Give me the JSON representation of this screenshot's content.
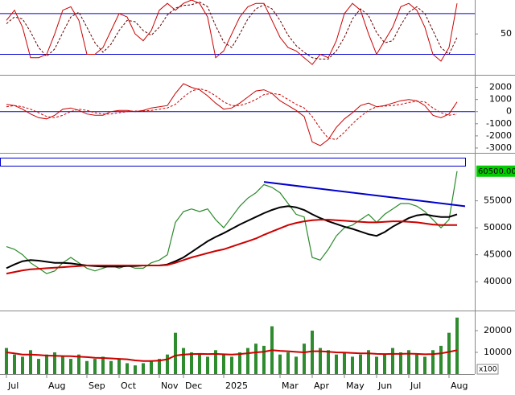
{
  "chart_data": [
    {
      "type": "line",
      "ylim": [
        -9,
        100
      ],
      "yticks": [
        50
      ],
      "levels": [
        20,
        80
      ],
      "level_color": "#0000cc",
      "series": [
        {
          "color": "#cc0000",
          "line_style": "solid",
          "values": [
            70,
            85,
            60,
            15,
            15,
            20,
            50,
            85,
            90,
            70,
            20,
            20,
            30,
            55,
            80,
            75,
            50,
            40,
            55,
            85,
            95,
            85,
            95,
            100,
            95,
            75,
            15,
            25,
            50,
            75,
            90,
            95,
            95,
            70,
            45,
            30,
            25,
            15,
            5,
            20,
            15,
            40,
            80,
            95,
            85,
            50,
            20,
            40,
            60,
            90,
            95,
            85,
            60,
            20,
            10,
            30,
            95
          ]
        },
        {
          "color": "#660000",
          "line_style": "dashed",
          "values": [
            65,
            75,
            72,
            53,
            30,
            17,
            28,
            52,
            75,
            82,
            60,
            37,
            23,
            35,
            55,
            70,
            68,
            55,
            48,
            60,
            78,
            88,
            92,
            93,
            97,
            90,
            62,
            38,
            30,
            50,
            72,
            87,
            93,
            87,
            70,
            48,
            33,
            23,
            15,
            13,
            13,
            25,
            45,
            72,
            87,
            77,
            52,
            37,
            40,
            63,
            82,
            90,
            80,
            55,
            30,
            20,
            45
          ]
        }
      ]
    },
    {
      "type": "line",
      "ylim": [
        -3400,
        2900
      ],
      "yticks": [
        2000,
        1000,
        0,
        -1000,
        -2000,
        -3000
      ],
      "levels": [
        0
      ],
      "level_color": "#0000cc",
      "series": [
        {
          "color": "#cc0000",
          "line_style": "solid",
          "values": [
            600,
            500,
            200,
            -200,
            -500,
            -600,
            -300,
            200,
            300,
            100,
            -200,
            -300,
            -300,
            0,
            100,
            100,
            0,
            100,
            300,
            400,
            500,
            1500,
            2300,
            2000,
            1800,
            1300,
            700,
            200,
            300,
            700,
            1200,
            1700,
            1800,
            1500,
            900,
            500,
            100,
            -400,
            -2500,
            -2800,
            -2300,
            -1300,
            -600,
            -100,
            500,
            700,
            400,
            500,
            700,
            900,
            1000,
            900,
            500,
            -300,
            -500,
            -200,
            800
          ]
        },
        {
          "color": "#cc0000",
          "line_style": "dashed",
          "values": [
            400,
            500,
            400,
            200,
            -100,
            -400,
            -500,
            -300,
            0,
            200,
            100,
            -100,
            -200,
            -200,
            -100,
            0,
            50,
            50,
            100,
            200,
            300,
            600,
            1200,
            1700,
            1900,
            1700,
            1300,
            800,
            500,
            500,
            700,
            1000,
            1400,
            1500,
            1400,
            1000,
            600,
            300,
            -400,
            -1400,
            -2200,
            -2300,
            -1700,
            -1000,
            -400,
            100,
            400,
            450,
            500,
            600,
            750,
            850,
            800,
            300,
            -100,
            -300,
            -200
          ]
        }
      ]
    },
    {
      "type": "line",
      "ylim": [
        34800,
        63600
      ],
      "yticks": [
        40000,
        45000,
        50000,
        55000
      ],
      "last_price": 60500,
      "last_price_label": "60500.00",
      "last_price_color": "#00cc00",
      "trendline": {
        "color": "#0000cc",
        "x": [
          32,
          57
        ],
        "values": [
          58500,
          54000
        ]
      },
      "series": [
        {
          "color": "#2a8a2a",
          "line_style": "solid",
          "width": 1.2,
          "values": [
            46500,
            46000,
            45000,
            43500,
            42500,
            41500,
            42000,
            43500,
            44500,
            43500,
            42500,
            42000,
            42500,
            43000,
            42500,
            43000,
            42500,
            42500,
            43500,
            44000,
            45000,
            51000,
            53000,
            53500,
            53000,
            53500,
            51500,
            50000,
            52000,
            54000,
            55500,
            56500,
            58000,
            57500,
            56500,
            54500,
            52500,
            52000,
            44500,
            44000,
            46000,
            48500,
            50000,
            50500,
            51500,
            52500,
            51000,
            52500,
            53500,
            54500,
            54500,
            54000,
            53000,
            51500,
            50000,
            51500,
            60500
          ]
        },
        {
          "color": "#000000",
          "line_style": "solid",
          "width": 2,
          "values": [
            42500,
            43200,
            43800,
            44000,
            43900,
            43700,
            43500,
            43500,
            43400,
            43200,
            43000,
            42900,
            42800,
            42800,
            42800,
            42900,
            42900,
            43000,
            43000,
            43000,
            43200,
            43800,
            44500,
            45500,
            46500,
            47500,
            48300,
            49000,
            49800,
            50600,
            51300,
            52000,
            52700,
            53300,
            53800,
            54000,
            53800,
            53300,
            52500,
            51800,
            51200,
            50700,
            50200,
            49800,
            49300,
            48800,
            48500,
            49200,
            50200,
            51000,
            51800,
            52300,
            52500,
            52200,
            52000,
            52000,
            52500
          ]
        },
        {
          "color": "#cc0000",
          "line_style": "solid",
          "width": 2,
          "values": [
            41500,
            41800,
            42100,
            42300,
            42400,
            42500,
            42600,
            42700,
            42800,
            42900,
            43000,
            43000,
            43000,
            43000,
            43000,
            43000,
            43000,
            43000,
            43000,
            43000,
            43100,
            43500,
            44000,
            44500,
            44900,
            45300,
            45700,
            46000,
            46500,
            47000,
            47500,
            48000,
            48700,
            49300,
            49900,
            50500,
            50900,
            51200,
            51400,
            51500,
            51500,
            51400,
            51300,
            51200,
            51100,
            51000,
            51000,
            51100,
            51200,
            51200,
            51100,
            51000,
            50800,
            50600,
            50500,
            50500,
            50500
          ]
        }
      ]
    },
    {
      "type": "bar",
      "ylim": [
        0,
        28500
      ],
      "yticks": [
        10000,
        20000
      ],
      "unit_label": "x100",
      "categories": [
        "Jul",
        null,
        null,
        null,
        null,
        "Aug",
        null,
        null,
        null,
        null,
        "Sep",
        null,
        null,
        null,
        "Oct",
        null,
        null,
        null,
        null,
        "Nov",
        null,
        null,
        "Dec",
        null,
        null,
        null,
        null,
        "2025",
        null,
        null,
        null,
        null,
        null,
        null,
        "Mar",
        null,
        null,
        null,
        "Apr",
        null,
        null,
        null,
        "May",
        null,
        null,
        null,
        "Jun",
        null,
        null,
        null,
        "Jul",
        null,
        null,
        null,
        null,
        "Aug",
        null
      ],
      "series": [
        {
          "type": "bar",
          "color": "#2e8b2e",
          "values": [
            12000,
            9000,
            8000,
            11000,
            7000,
            9000,
            10000,
            8000,
            7000,
            9000,
            6000,
            7000,
            8000,
            6000,
            7000,
            5000,
            4000,
            5000,
            6000,
            7000,
            9000,
            19000,
            12000,
            10000,
            9000,
            8000,
            11000,
            9000,
            8000,
            10000,
            12000,
            14000,
            13000,
            22000,
            9000,
            10000,
            8000,
            14000,
            20000,
            12000,
            11000,
            9000,
            10000,
            8000,
            9000,
            11000,
            8000,
            9000,
            12000,
            10000,
            11000,
            9000,
            8000,
            11000,
            13000,
            19000,
            26000
          ]
        },
        {
          "type": "line",
          "color": "#cc0000",
          "line_style": "solid",
          "width": 2,
          "values": [
            10000,
            9500,
            9000,
            9000,
            8800,
            8500,
            8400,
            8300,
            8200,
            8000,
            7800,
            7500,
            7400,
            7200,
            7000,
            6800,
            6300,
            6000,
            6000,
            6200,
            6800,
            8500,
            9000,
            9200,
            9300,
            9200,
            9300,
            9100,
            9000,
            9200,
            9600,
            10000,
            10300,
            11000,
            10700,
            10500,
            10200,
            10000,
            10500,
            10500,
            10300,
            10000,
            9900,
            9700,
            9500,
            9500,
            9300,
            9200,
            9300,
            9300,
            9400,
            9300,
            9100,
            9200,
            9500,
            10200,
            11000
          ]
        }
      ]
    }
  ]
}
